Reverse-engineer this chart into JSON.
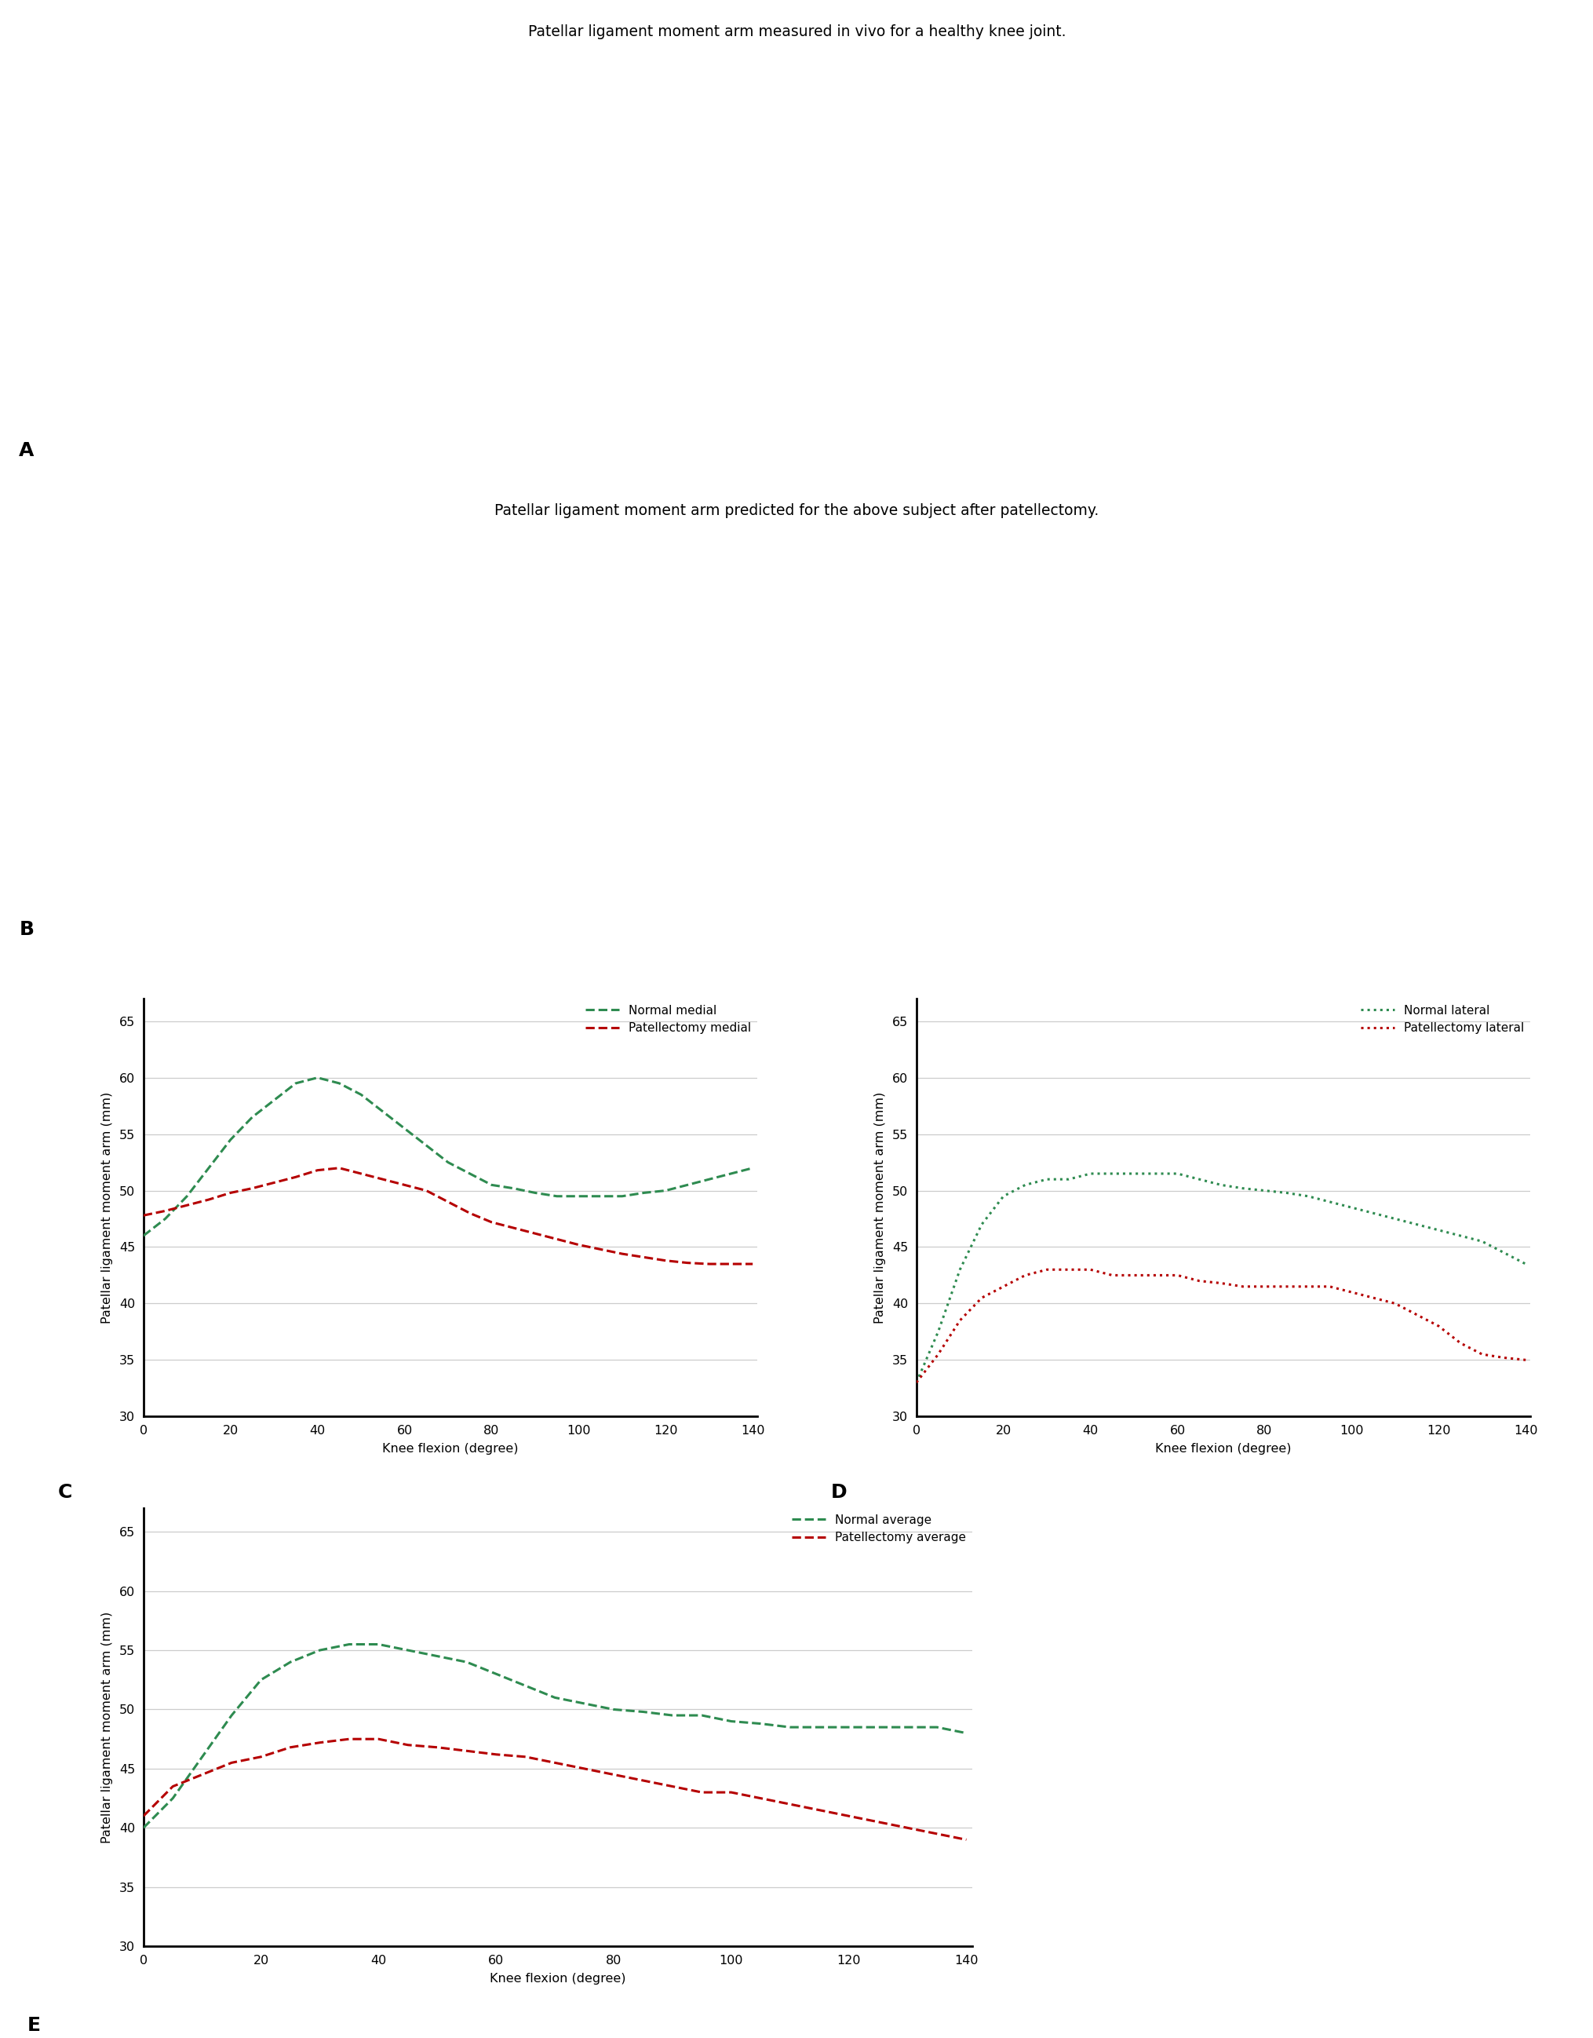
{
  "title_A": "Patellar ligament moment arm measured in vivo for a healthy knee joint.",
  "title_B": "Patellar ligament moment arm predicted for the above subject after patellectomy.",
  "label_A": "A",
  "label_B": "B",
  "label_C": "C",
  "label_D": "D",
  "label_E": "E",
  "ylabel": "Patellar ligament moment arm (mm)",
  "xlabel": "Knee flexion (degree)",
  "ylim": [
    30,
    67
  ],
  "xlim": [
    0,
    140
  ],
  "yticks": [
    30,
    35,
    40,
    45,
    50,
    55,
    60,
    65
  ],
  "xticks": [
    0,
    20,
    40,
    60,
    80,
    100,
    120,
    140
  ],
  "color_green": "#2e8b50",
  "color_red": "#b50000",
  "legend_C": [
    "Normal medial",
    "Patellectomy medial"
  ],
  "legend_D": [
    "Normal lateral",
    "Patellectomy lateral"
  ],
  "legend_E": [
    "Normal average",
    "Patellectomy average"
  ],
  "normal_medial_x": [
    0,
    5,
    10,
    15,
    20,
    25,
    30,
    35,
    40,
    45,
    50,
    55,
    60,
    65,
    70,
    75,
    80,
    85,
    90,
    95,
    100,
    105,
    110,
    115,
    120,
    125,
    130,
    135,
    140
  ],
  "normal_medial_y": [
    46.0,
    47.5,
    49.5,
    52.0,
    54.5,
    56.5,
    58.0,
    59.5,
    60.0,
    59.5,
    58.5,
    57.0,
    55.5,
    54.0,
    52.5,
    51.5,
    50.5,
    50.2,
    49.8,
    49.5,
    49.5,
    49.5,
    49.5,
    49.8,
    50.0,
    50.5,
    51.0,
    51.5,
    52.0
  ],
  "patellectomy_medial_x": [
    0,
    5,
    10,
    15,
    20,
    25,
    30,
    35,
    40,
    45,
    50,
    55,
    60,
    65,
    70,
    75,
    80,
    85,
    90,
    95,
    100,
    105,
    110,
    115,
    120,
    125,
    130,
    135,
    140
  ],
  "patellectomy_medial_y": [
    47.8,
    48.2,
    48.7,
    49.2,
    49.8,
    50.2,
    50.7,
    51.2,
    51.8,
    52.0,
    51.5,
    51.0,
    50.5,
    50.0,
    49.0,
    48.0,
    47.2,
    46.7,
    46.2,
    45.7,
    45.2,
    44.8,
    44.4,
    44.1,
    43.8,
    43.6,
    43.5,
    43.5,
    43.5
  ],
  "normal_lateral_x": [
    0,
    5,
    10,
    15,
    20,
    25,
    30,
    35,
    40,
    45,
    50,
    55,
    60,
    65,
    70,
    75,
    80,
    85,
    90,
    95,
    100,
    105,
    110,
    115,
    120,
    125,
    130,
    135,
    140
  ],
  "normal_lateral_y": [
    33.0,
    37.5,
    43.0,
    47.0,
    49.5,
    50.5,
    51.0,
    51.0,
    51.5,
    51.5,
    51.5,
    51.5,
    51.5,
    51.0,
    50.5,
    50.2,
    50.0,
    49.8,
    49.5,
    49.0,
    48.5,
    48.0,
    47.5,
    47.0,
    46.5,
    46.0,
    45.5,
    44.5,
    43.5
  ],
  "patellectomy_lateral_x": [
    0,
    5,
    10,
    15,
    20,
    25,
    30,
    35,
    40,
    45,
    50,
    55,
    60,
    65,
    70,
    75,
    80,
    85,
    90,
    95,
    100,
    105,
    110,
    115,
    120,
    125,
    130,
    135,
    140
  ],
  "patellectomy_lateral_y": [
    33.0,
    35.5,
    38.5,
    40.5,
    41.5,
    42.5,
    43.0,
    43.0,
    43.0,
    42.5,
    42.5,
    42.5,
    42.5,
    42.0,
    41.8,
    41.5,
    41.5,
    41.5,
    41.5,
    41.5,
    41.0,
    40.5,
    40.0,
    39.0,
    38.0,
    36.5,
    35.5,
    35.2,
    35.0
  ],
  "normal_avg_x": [
    0,
    5,
    10,
    15,
    20,
    25,
    30,
    35,
    40,
    45,
    50,
    55,
    60,
    65,
    70,
    75,
    80,
    85,
    90,
    95,
    100,
    105,
    110,
    115,
    120,
    125,
    130,
    135,
    140
  ],
  "normal_avg_y": [
    40.0,
    42.5,
    46.0,
    49.5,
    52.5,
    54.0,
    55.0,
    55.5,
    55.5,
    55.0,
    54.5,
    54.0,
    53.0,
    52.0,
    51.0,
    50.5,
    50.0,
    49.8,
    49.5,
    49.5,
    49.0,
    48.8,
    48.5,
    48.5,
    48.5,
    48.5,
    48.5,
    48.5,
    48.0
  ],
  "patellectomy_avg_x": [
    0,
    5,
    10,
    15,
    20,
    25,
    30,
    35,
    40,
    45,
    50,
    55,
    60,
    65,
    70,
    75,
    80,
    85,
    90,
    95,
    100,
    105,
    110,
    115,
    120,
    125,
    130,
    135,
    140
  ],
  "patellectomy_avg_y": [
    41.0,
    43.5,
    44.5,
    45.5,
    46.0,
    46.8,
    47.2,
    47.5,
    47.5,
    47.0,
    46.8,
    46.5,
    46.2,
    46.0,
    45.5,
    45.0,
    44.5,
    44.0,
    43.5,
    43.0,
    43.0,
    42.5,
    42.0,
    41.5,
    41.0,
    40.5,
    40.0,
    39.5,
    39.0
  ]
}
